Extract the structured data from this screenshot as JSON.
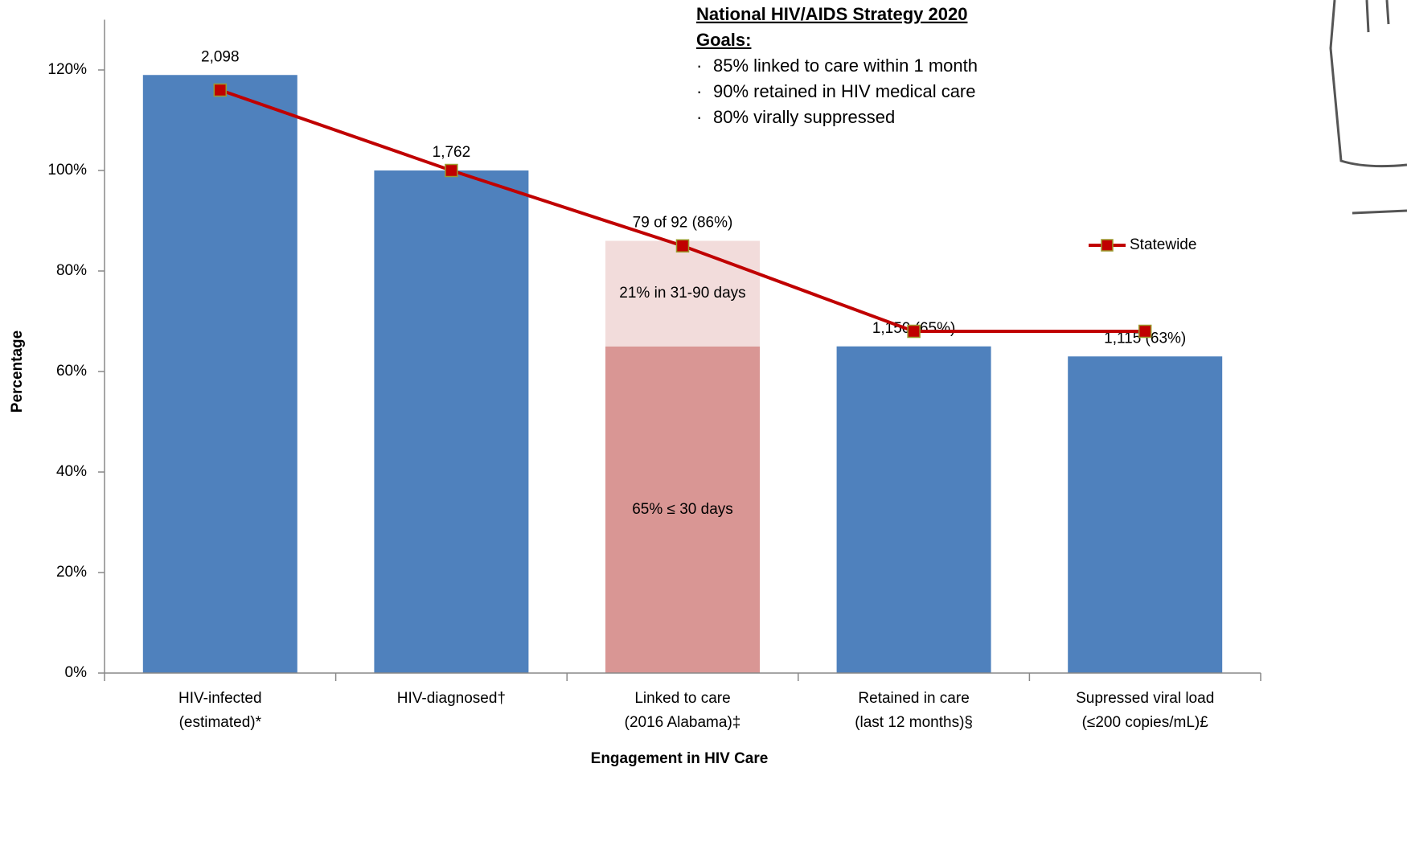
{
  "chart_data": {
    "type": "bar",
    "x_label": "Engagement in HIV Care",
    "y_label": "Percentage",
    "categories": [
      [
        "HIV-infected",
        "(estimated)*"
      ],
      [
        "HIV-diagnosed†"
      ],
      [
        "Linked to care",
        "(2016 Alabama)‡"
      ],
      [
        "Retained in care",
        "(last 12 months)§"
      ],
      [
        "Supressed viral load",
        "(≤200 copies/mL)£"
      ]
    ],
    "series": [
      {
        "color": "#4f81bd",
        "values": [
          119,
          100,
          null,
          65,
          63
        ]
      },
      {
        "color": "#d99694",
        "values": [
          null,
          null,
          65,
          null,
          null
        ],
        "value_labels": [
          null,
          null,
          "65% ≤ 30 days",
          null,
          null
        ]
      },
      {
        "color": "#f2dcdb",
        "values": [
          null,
          null,
          21,
          null,
          null
        ],
        "value_labels": [
          null,
          null,
          "21% in 31-90 days",
          null,
          null
        ]
      },
      {
        "name": "Statewide",
        "type": "line",
        "color": "#c00000",
        "marker_edge": "#9b9b2e",
        "values": [
          116,
          100,
          85,
          68,
          68
        ]
      }
    ],
    "bar_annotations": [
      "2,098",
      "1,762",
      "79 of 92 (86%)",
      "1,150 (65%)",
      "1,115 (63%)"
    ],
    "ylim": [
      0,
      130
    ],
    "yticks": [
      {
        "value": 0,
        "label": "0%"
      },
      {
        "value": 20,
        "label": "20%"
      },
      {
        "value": 40,
        "label": "40%"
      },
      {
        "value": 60,
        "label": "60%"
      },
      {
        "value": 80,
        "label": "80%"
      },
      {
        "value": 100,
        "label": "100%"
      },
      {
        "value": 120,
        "label": "120%"
      }
    ],
    "legend": "right",
    "goals": {
      "title": "National HIV/AIDS Strategy 2020",
      "subtitle": "Goals:",
      "items": [
        "85% linked to care within 1 month",
        "90% retained in HIV medical care",
        "80% virally suppressed"
      ]
    }
  }
}
